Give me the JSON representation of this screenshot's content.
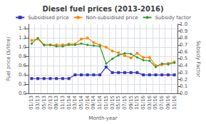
{
  "chart_data": {
    "type": "line",
    "title": "Diesel fuel prices (2013-2016)",
    "xlabel": "Month-year",
    "ylabel": "Fuel price ($/litre)",
    "y2label": "Subsidy Factor",
    "categories": [
      "01/13",
      "03/13",
      "05/13",
      "07/13",
      "09/13",
      "11/13",
      "01/14",
      "03/14",
      "05/14",
      "07/14",
      "09/14",
      "11/14",
      "01/15",
      "03/15",
      "05/15",
      "07/15",
      "09/15",
      "11/15",
      "01/16",
      "03/16",
      "05/16",
      "07/16",
      "09/16",
      "11/16"
    ],
    "series": [
      {
        "name": "Subsidised price",
        "color": "#3333cc",
        "marker": "square",
        "values": [
          0.32,
          0.32,
          0.32,
          0.32,
          0.32,
          0.32,
          0.32,
          0.4,
          0.4,
          0.4,
          0.4,
          0.4,
          0.57,
          0.45,
          0.45,
          0.45,
          0.45,
          0.45,
          0.4,
          0.4,
          0.4,
          0.4,
          0.4,
          0.4
        ]
      },
      {
        "name": "Non-subsidised price",
        "color": "#ff8800",
        "marker": "circle",
        "values": [
          1.15,
          1.18,
          1.05,
          1.05,
          1.05,
          1.05,
          1.07,
          1.07,
          1.18,
          1.2,
          1.1,
          1.05,
          1.0,
          0.92,
          0.88,
          0.82,
          0.77,
          0.87,
          0.78,
          0.78,
          0.6,
          0.62,
          0.65,
          0.68
        ]
      },
      {
        "name": "Subsidy factor",
        "color": "#339933",
        "marker": "diamond",
        "axis": "y2",
        "values": [
          0.72,
          0.8,
          0.7,
          0.7,
          0.68,
          0.68,
          0.7,
          0.7,
          0.72,
          0.7,
          0.69,
          0.68,
          0.43,
          0.5,
          0.55,
          0.58,
          0.57,
          0.52,
          0.48,
          0.47,
          0.38,
          0.43,
          0.42,
          0.44
        ]
      }
    ],
    "ylim": [
      0.0,
      1.5
    ],
    "yticks": [
      {
        "value": 0,
        "label": "0.0"
      },
      0.2,
      0.4,
      0.6,
      0.8,
      {
        "value": 1,
        "label": "1.0"
      },
      1.2,
      1.4
    ],
    "y2lim": [
      0.0,
      1.0
    ],
    "y2ticks": [
      {
        "value": 0,
        "label": "0.0"
      },
      0.1,
      0.2,
      0.3,
      0.4,
      0.5,
      0.6,
      0.7,
      0.8,
      0.9,
      {
        "value": 1,
        "label": "1.0"
      }
    ],
    "grid": true,
    "legend": "top"
  }
}
